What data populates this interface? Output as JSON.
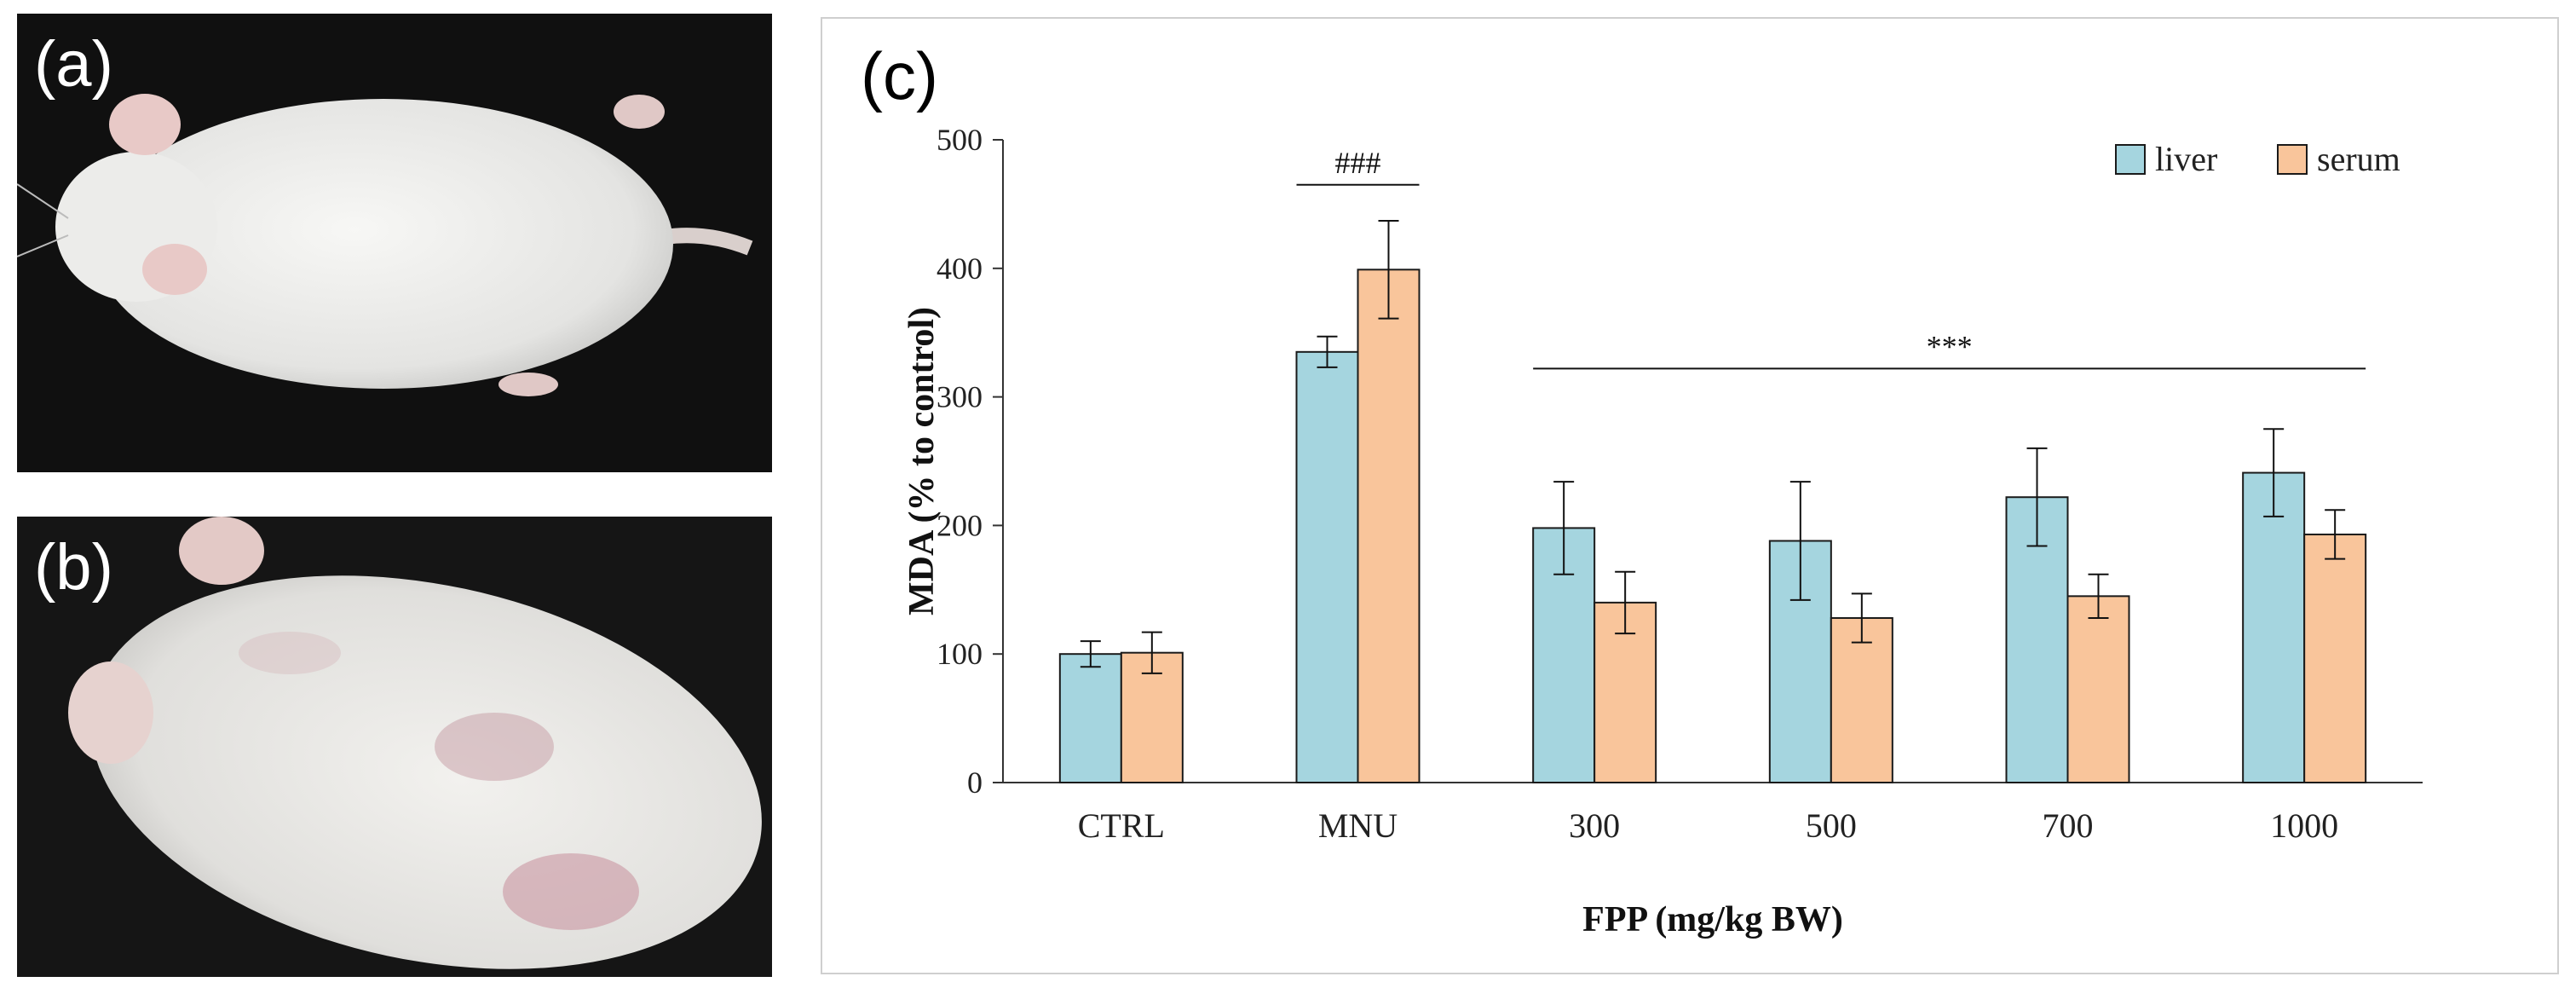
{
  "panels": {
    "a": {
      "label": "(a)"
    },
    "b": {
      "label": "(b)"
    },
    "c": {
      "label": "(c)"
    }
  },
  "colors": {
    "liver": "#a5d5df",
    "serum": "#f9c59b",
    "axis": "#333333"
  },
  "chart_data": {
    "type": "bar",
    "title": "",
    "xlabel": "FPP (mg/kg BW)",
    "ylabel": "MDA (% to control)",
    "ylim": [
      0,
      500
    ],
    "yticks": [
      0,
      100,
      200,
      300,
      400,
      500
    ],
    "grid": false,
    "legend_position": "top-right",
    "categories": [
      "CTRL",
      "MNU",
      "300",
      "500",
      "700",
      "1000"
    ],
    "series": [
      {
        "name": "liver",
        "color": "#a5d5df",
        "values": [
          100,
          335,
          198,
          188,
          222,
          241
        ],
        "errors": [
          10,
          12,
          36,
          46,
          38,
          34
        ]
      },
      {
        "name": "serum",
        "color": "#f9c59b",
        "values": [
          101,
          399,
          140,
          128,
          145,
          193
        ],
        "errors": [
          16,
          38,
          24,
          19,
          17,
          19
        ]
      }
    ],
    "annotations": [
      {
        "text": "###",
        "from_category": "MNU",
        "to_category": "MNU",
        "level": 465
      },
      {
        "text": "***",
        "from_category": "300",
        "to_category": "1000",
        "level": 322
      }
    ]
  }
}
